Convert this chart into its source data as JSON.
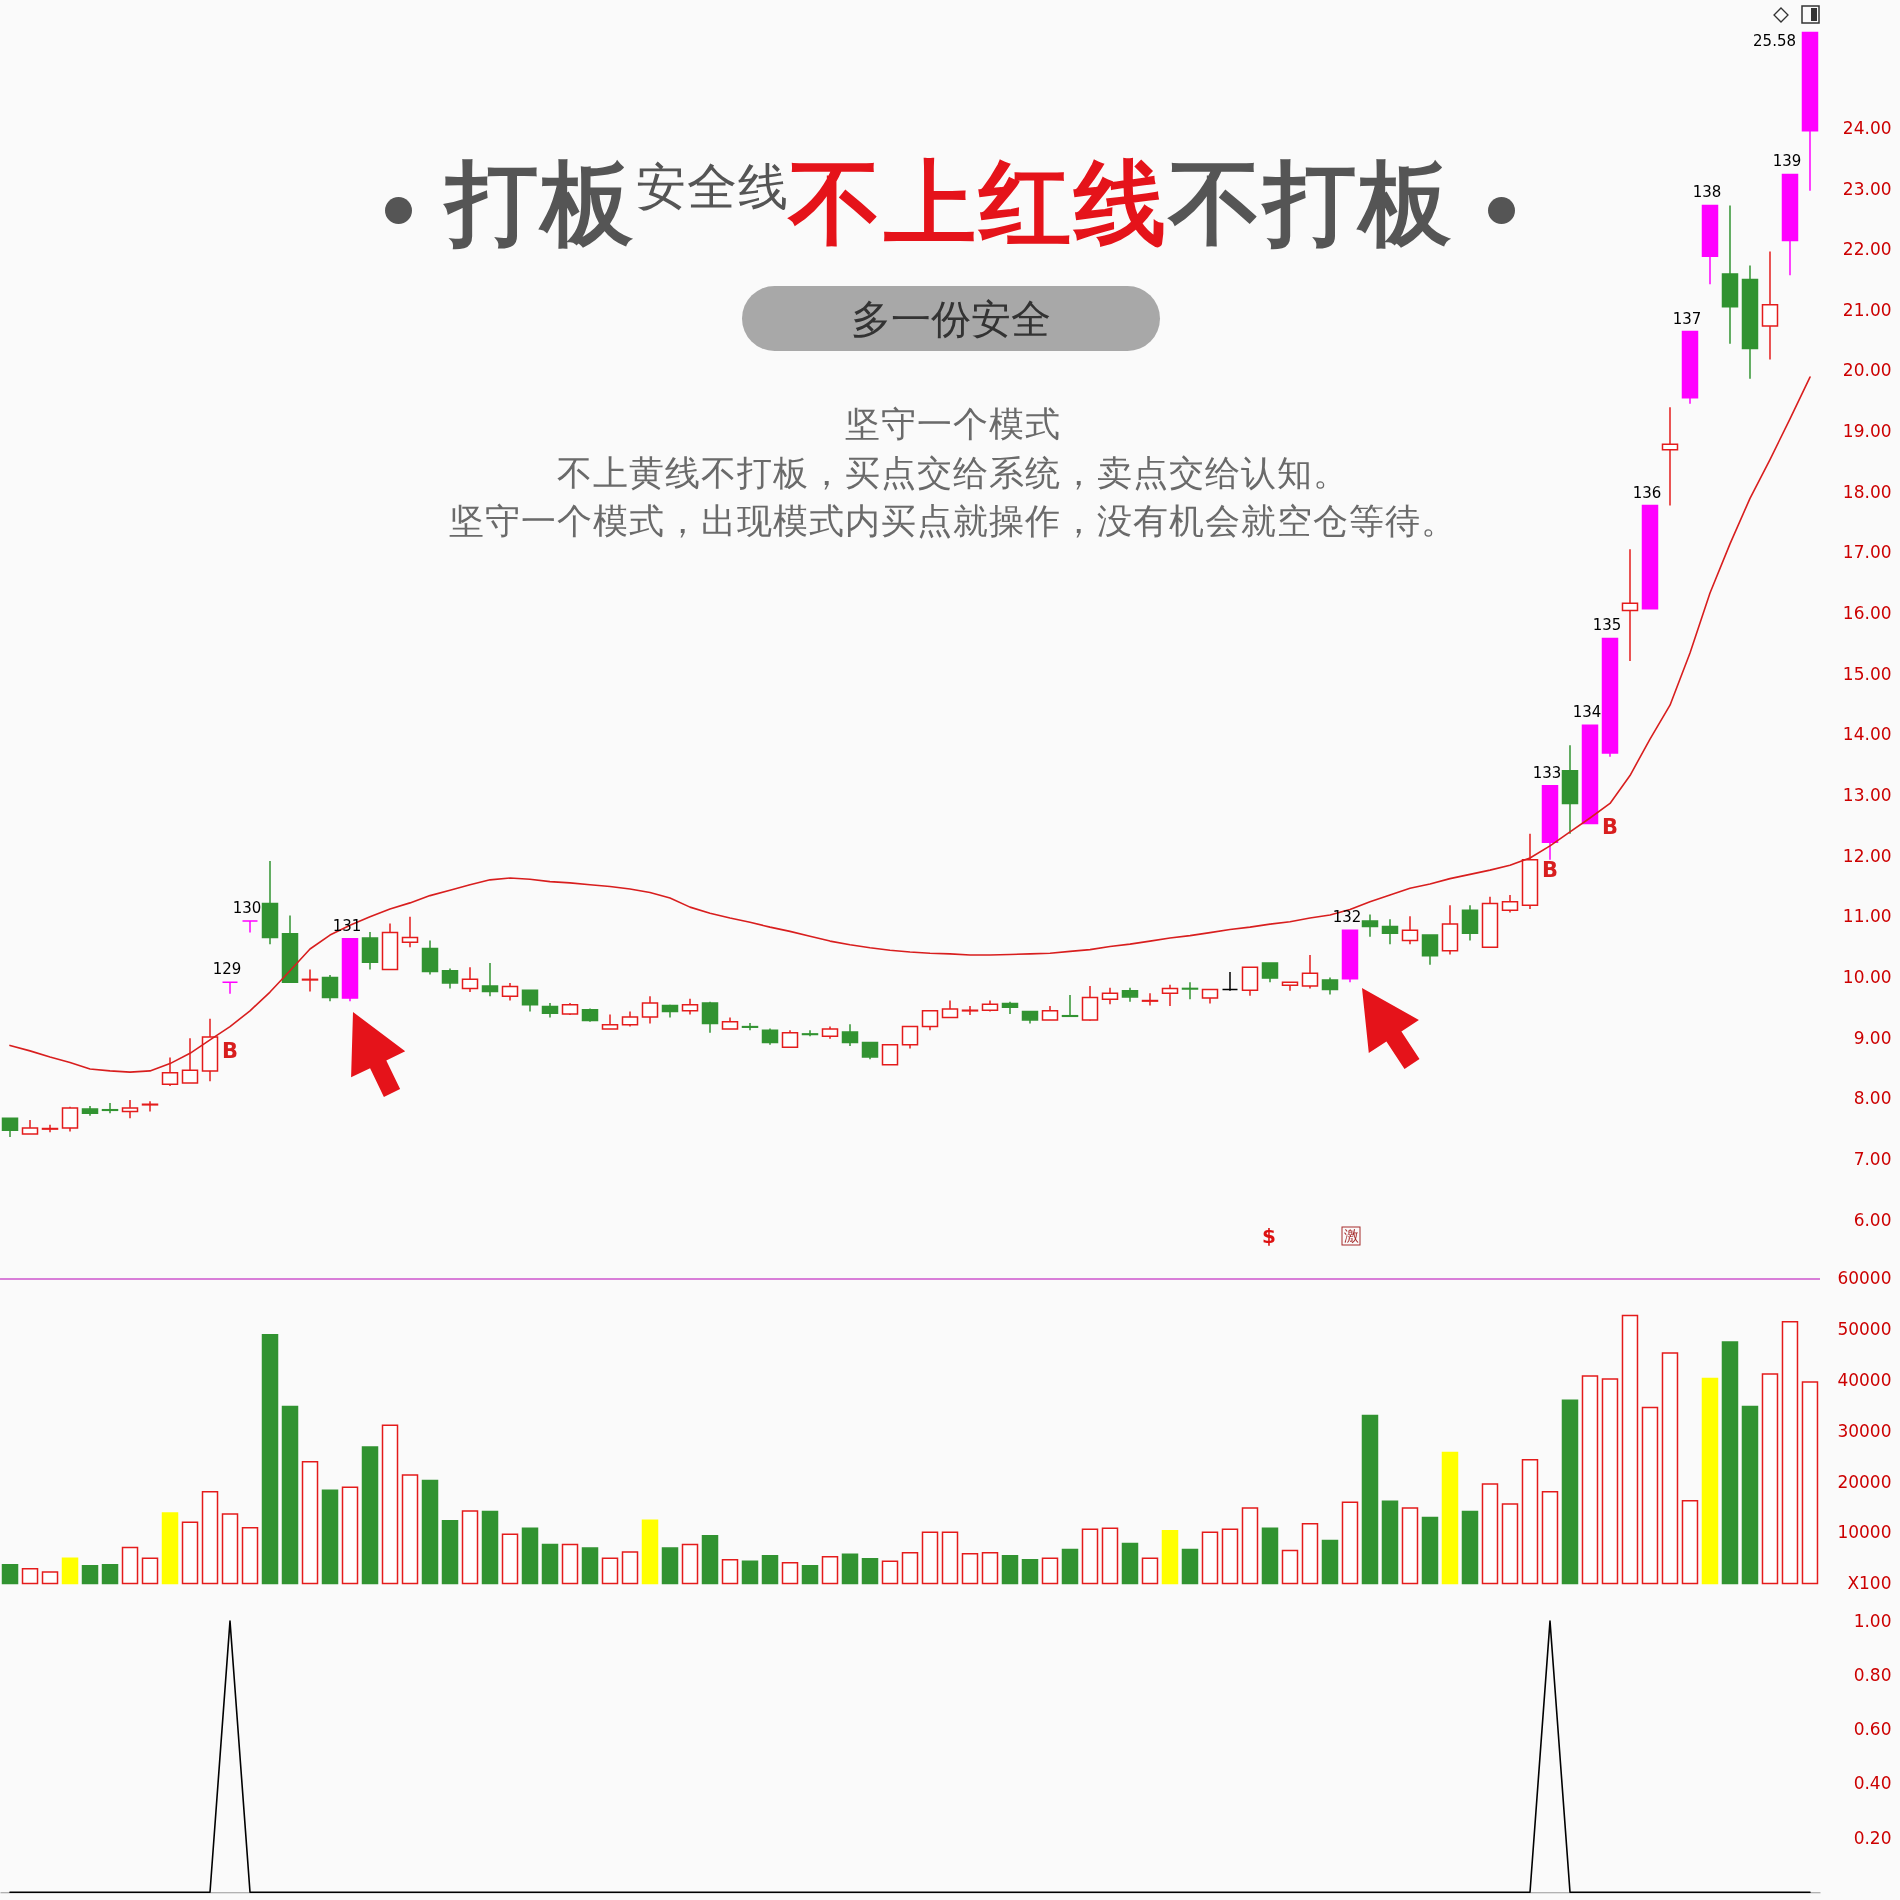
{
  "chart_data": [
    {
      "type": "candlestick",
      "title": "打板安全线不上红线不打板",
      "subtitle": "多一份安全",
      "annotations": [
        "坚守一个模式",
        "不上黄线不打板，买点交给系统，卖点交给认知。",
        "坚守一个模式，出现模式内买点就操作，没有机会就空仓等待。",
        "$",
        "激"
      ],
      "categories": [
        null,
        null,
        null,
        null,
        null,
        null,
        null,
        null,
        null,
        null,
        null,
        null,
        null,
        null,
        null,
        null,
        null,
        null,
        null,
        null,
        null,
        null,
        null,
        null,
        null,
        null,
        null,
        null,
        null,
        null,
        null,
        null,
        null,
        null,
        null,
        null,
        null,
        null,
        null,
        null,
        null,
        null,
        null,
        null,
        null,
        null,
        null,
        null,
        null,
        null,
        null,
        null,
        null,
        null,
        null,
        null,
        null,
        null,
        null,
        null,
        null,
        null,
        null,
        null,
        null,
        null,
        null,
        null,
        null,
        null,
        null,
        null,
        null,
        null,
        null,
        null,
        null,
        null,
        null,
        null,
        null,
        null,
        null,
        null,
        null,
        null,
        null,
        null,
        null,
        null,
        null
      ],
      "ohlc": [
        [
          7.68,
          7.68,
          7.37,
          7.48
        ],
        [
          7.42,
          7.65,
          7.42,
          7.52
        ],
        [
          7.5,
          7.57,
          7.45,
          7.51
        ],
        [
          7.52,
          7.87,
          7.46,
          7.85
        ],
        [
          7.83,
          7.88,
          7.72,
          7.76
        ],
        [
          7.82,
          7.93,
          7.76,
          7.81
        ],
        [
          7.79,
          7.98,
          7.68,
          7.85
        ],
        [
          7.9,
          7.96,
          7.79,
          7.91
        ],
        [
          8.24,
          8.68,
          8.21,
          8.43
        ],
        [
          8.26,
          9.0,
          8.26,
          8.47
        ],
        [
          8.46,
          9.32,
          8.29,
          9.02
        ],
        [
          9.92,
          9.92,
          9.73,
          9.92
        ],
        [
          10.93,
          10.93,
          10.74,
          10.93
        ],
        [
          11.22,
          11.92,
          10.55,
          10.66
        ],
        [
          10.72,
          11.02,
          9.91,
          9.92
        ],
        [
          9.96,
          10.13,
          9.77,
          9.97
        ],
        [
          10.0,
          10.04,
          9.61,
          9.67
        ],
        [
          9.66,
          10.64,
          9.61,
          10.64
        ],
        [
          10.65,
          10.75,
          10.13,
          10.25
        ],
        [
          10.13,
          10.89,
          10.13,
          10.74
        ],
        [
          10.58,
          11.0,
          10.5,
          10.66
        ],
        [
          10.48,
          10.61,
          10.05,
          10.1
        ],
        [
          10.11,
          10.15,
          9.82,
          9.91
        ],
        [
          9.82,
          10.17,
          9.76,
          9.97
        ],
        [
          9.86,
          10.24,
          9.69,
          9.77
        ],
        [
          9.69,
          9.91,
          9.62,
          9.85
        ],
        [
          9.79,
          9.79,
          9.44,
          9.55
        ],
        [
          9.52,
          9.58,
          9.34,
          9.41
        ],
        [
          9.4,
          9.58,
          9.38,
          9.55
        ],
        [
          9.47,
          9.49,
          9.27,
          9.29
        ],
        [
          9.15,
          9.39,
          9.15,
          9.22
        ],
        [
          9.22,
          9.44,
          9.19,
          9.35
        ],
        [
          9.35,
          9.69,
          9.24,
          9.58
        ],
        [
          9.54,
          9.55,
          9.34,
          9.44
        ],
        [
          9.45,
          9.65,
          9.39,
          9.55
        ],
        [
          9.58,
          9.6,
          9.09,
          9.24
        ],
        [
          9.15,
          9.34,
          9.15,
          9.27
        ],
        [
          9.19,
          9.25,
          9.13,
          9.18
        ],
        [
          9.13,
          9.16,
          8.89,
          8.93
        ],
        [
          8.85,
          9.13,
          8.85,
          9.09
        ],
        [
          9.07,
          9.13,
          9.03,
          9.06
        ],
        [
          9.03,
          9.19,
          8.99,
          9.15
        ],
        [
          9.1,
          9.23,
          8.87,
          8.93
        ],
        [
          8.93,
          8.93,
          8.65,
          8.69
        ],
        [
          8.56,
          8.89,
          8.56,
          8.89
        ],
        [
          8.89,
          9.19,
          8.83,
          9.19
        ],
        [
          9.19,
          9.45,
          9.13,
          9.45
        ],
        [
          9.34,
          9.62,
          9.34,
          9.48
        ],
        [
          9.45,
          9.53,
          9.38,
          9.46
        ],
        [
          9.46,
          9.62,
          9.44,
          9.56
        ],
        [
          9.57,
          9.6,
          9.4,
          9.51
        ],
        [
          9.44,
          9.44,
          9.24,
          9.3
        ],
        [
          9.3,
          9.53,
          9.3,
          9.45
        ],
        [
          9.37,
          9.71,
          9.36,
          9.36
        ],
        [
          9.3,
          9.86,
          9.29,
          9.67
        ],
        [
          9.64,
          9.83,
          9.56,
          9.74
        ],
        [
          9.78,
          9.83,
          9.6,
          9.68
        ],
        [
          9.61,
          9.74,
          9.54,
          9.62
        ],
        [
          9.74,
          9.88,
          9.53,
          9.82
        ],
        [
          9.82,
          9.92,
          9.64,
          9.81
        ],
        [
          9.66,
          9.8,
          9.57,
          9.8
        ],
        [
          9.8,
          10.09,
          9.78,
          9.8
        ],
        [
          9.79,
          10.17,
          9.7,
          10.17
        ],
        [
          10.24,
          10.24,
          9.92,
          9.99
        ],
        [
          9.87,
          9.92,
          9.78,
          9.92
        ],
        [
          9.86,
          10.37,
          9.82,
          10.07
        ],
        [
          9.96,
          10.0,
          9.72,
          9.8
        ],
        [
          9.98,
          10.78,
          9.92,
          10.78
        ],
        [
          10.93,
          11.04,
          10.67,
          10.84
        ],
        [
          10.84,
          10.96,
          10.55,
          10.73
        ],
        [
          10.61,
          11.01,
          10.55,
          10.78
        ],
        [
          10.7,
          10.7,
          10.21,
          10.36
        ],
        [
          10.44,
          11.19,
          10.38,
          10.88
        ],
        [
          11.11,
          11.19,
          10.61,
          10.73
        ],
        [
          10.5,
          11.33,
          10.5,
          11.22
        ],
        [
          11.11,
          11.36,
          11.07,
          11.25
        ],
        [
          11.19,
          12.37,
          11.13,
          11.94
        ],
        [
          12.23,
          13.16,
          11.94,
          13.16
        ],
        [
          13.41,
          13.83,
          12.37,
          12.87
        ],
        [
          12.54,
          14.16,
          12.54,
          14.16
        ],
        [
          13.7,
          15.59,
          13.64,
          15.59
        ],
        [
          16.05,
          17.06,
          15.22,
          16.17
        ],
        [
          16.08,
          17.78,
          16.08,
          17.78
        ],
        [
          18.7,
          19.4,
          17.78,
          18.79
        ],
        [
          19.56,
          20.65,
          19.46,
          20.65
        ],
        [
          21.89,
          22.73,
          21.43,
          22.73
        ],
        [
          21.6,
          22.73,
          20.45,
          21.06
        ],
        [
          21.51,
          21.74,
          19.87,
          20.37
        ],
        [
          20.74,
          21.97,
          20.19,
          21.09
        ],
        [
          22.15,
          23.24,
          21.58,
          23.24
        ],
        [
          23.96,
          25.58,
          22.97,
          25.58
        ]
      ],
      "color": "#e41b1b",
      "colors": [
        "#319331",
        "#e41b1b",
        "#e41b1b",
        "#e41b1b",
        "#319331",
        "#319331",
        "#e41b1b",
        "#e41b1b",
        "#e41b1b",
        "#e41b1b",
        "#e41b1b",
        "#ff00ff",
        "#ff00ff",
        "#319331",
        "#319331",
        "#e41b1b",
        "#319331",
        "#ff00ff",
        "#319331",
        "#e41b1b",
        "#e41b1b",
        "#319331",
        "#319331",
        "#e41b1b",
        "#319331",
        "#e41b1b",
        "#319331",
        "#319331",
        "#e41b1b",
        "#319331",
        "#e41b1b",
        "#e41b1b",
        "#e41b1b",
        "#319331",
        "#e41b1b",
        "#319331",
        "#e41b1b",
        "#319331",
        "#319331",
        "#e41b1b",
        "#319331",
        "#e41b1b",
        "#319331",
        "#319331",
        "#e41b1b",
        "#e41b1b",
        "#e41b1b",
        "#e41b1b",
        "#e41b1b",
        "#e41b1b",
        "#319331",
        "#319331",
        "#e41b1b",
        "#319331",
        "#e41b1b",
        "#e41b1b",
        "#319331",
        "#e41b1b",
        "#e41b1b",
        "#319331",
        "#e41b1b",
        "#000000",
        "#e41b1b",
        "#319331",
        "#e41b1b",
        "#e41b1b",
        "#319331",
        "#ff00ff",
        "#319331",
        "#319331",
        "#e41b1b",
        "#319331",
        "#e41b1b",
        "#319331",
        "#e41b1b",
        "#e41b1b",
        "#e41b1b",
        "#ff00ff",
        "#319331",
        "#ff00ff",
        "#ff00ff",
        "#e41b1b",
        "#ff00ff",
        "#e41b1b",
        "#ff00ff",
        "#ff00ff",
        "#319331",
        "#319331",
        "#e41b1b",
        "#ff00ff",
        "#ff00ff"
      ],
      "value_labels": [
        null,
        null,
        null,
        null,
        null,
        null,
        null,
        null,
        null,
        null,
        null,
        "129",
        "130",
        null,
        null,
        null,
        null,
        "131",
        null,
        null,
        null,
        null,
        null,
        null,
        null,
        null,
        null,
        null,
        null,
        null,
        null,
        null,
        null,
        null,
        null,
        null,
        null,
        null,
        null,
        null,
        null,
        null,
        null,
        null,
        null,
        null,
        null,
        null,
        null,
        null,
        null,
        null,
        null,
        null,
        null,
        null,
        null,
        null,
        null,
        null,
        null,
        null,
        null,
        null,
        null,
        null,
        null,
        "132",
        null,
        null,
        null,
        null,
        null,
        null,
        null,
        null,
        null,
        "133",
        null,
        "134",
        "135",
        null,
        "136",
        null,
        "137",
        "138",
        null,
        null,
        null,
        "139",
        "25.58"
      ],
      "series": [
        {
          "type": "line",
          "color": "#d81e1e",
          "values": [
            8.88,
            8.79,
            8.69,
            8.6,
            8.49,
            8.46,
            8.44,
            8.46,
            8.58,
            8.75,
            8.97,
            9.19,
            9.45,
            9.76,
            10.11,
            10.47,
            10.7,
            10.86,
            11.0,
            11.13,
            11.23,
            11.35,
            11.44,
            11.53,
            11.61,
            11.64,
            11.62,
            11.58,
            11.56,
            11.53,
            11.5,
            11.46,
            11.4,
            11.31,
            11.16,
            11.06,
            10.98,
            10.91,
            10.83,
            10.76,
            10.68,
            10.6,
            10.54,
            10.49,
            10.45,
            10.42,
            10.4,
            10.39,
            10.37,
            10.37,
            10.38,
            10.39,
            10.4,
            10.43,
            10.46,
            10.51,
            10.55,
            10.6,
            10.65,
            10.69,
            10.74,
            10.79,
            10.83,
            10.88,
            10.92,
            10.98,
            11.03,
            11.12,
            11.25,
            11.36,
            11.47,
            11.54,
            11.63,
            11.7,
            11.77,
            11.85,
            11.97,
            12.17,
            12.4,
            12.63,
            12.87,
            13.33,
            13.93,
            14.49,
            15.35,
            16.34,
            17.15,
            17.9,
            18.54,
            19.21,
            19.9
          ],
          "value_labels": [
            null,
            null,
            null,
            null,
            null,
            null,
            null,
            null,
            null,
            null,
            null,
            "B",
            null,
            null,
            null,
            null,
            null,
            null,
            null,
            null,
            null,
            null,
            null,
            null,
            null,
            null,
            null,
            null,
            null,
            null,
            null,
            null,
            null,
            null,
            null,
            null,
            null,
            null,
            null,
            null,
            null,
            null,
            null,
            null,
            null,
            null,
            null,
            null,
            null,
            null,
            null,
            null,
            null,
            null,
            null,
            null,
            null,
            null,
            null,
            null,
            null,
            null,
            null,
            null,
            null,
            null,
            null,
            null,
            null,
            null,
            null,
            null,
            null,
            null,
            null,
            null,
            null,
            "B",
            null,
            null,
            "B",
            null,
            null,
            null,
            null,
            null,
            null,
            null,
            null,
            null,
            null
          ]
        }
      ],
      "ylim": [
        6,
        26.1
      ],
      "yticks": [
        {
          "value": 6,
          "label": "6.00"
        },
        {
          "value": 7,
          "label": "7.00"
        },
        {
          "value": 8,
          "label": "8.00"
        },
        {
          "value": 9,
          "label": "9.00"
        },
        {
          "value": 10,
          "label": "10.00"
        },
        {
          "value": 11,
          "label": "11.00"
        },
        {
          "value": 12,
          "label": "12.00"
        },
        {
          "value": 13,
          "label": "13.00"
        },
        {
          "value": 14,
          "label": "14.00"
        },
        {
          "value": 15,
          "label": "15.00"
        },
        {
          "value": 16,
          "label": "16.00"
        },
        {
          "value": 17,
          "label": "17.00"
        },
        {
          "value": 18,
          "label": "18.00"
        },
        {
          "value": 19,
          "label": "19.00"
        },
        {
          "value": 20,
          "label": "20.00"
        },
        {
          "value": 21,
          "label": "21.00"
        },
        {
          "value": 22,
          "label": "22.00"
        },
        {
          "value": 23,
          "label": "23.00"
        },
        {
          "value": 24,
          "label": "24.00"
        }
      ]
    },
    {
      "type": "bar",
      "categories": [
        null,
        null,
        null,
        null,
        null,
        null,
        null,
        null,
        null,
        null,
        null,
        null,
        null,
        null,
        null,
        null,
        null,
        null,
        null,
        null,
        null,
        null,
        null,
        null,
        null,
        null,
        null,
        null,
        null,
        null,
        null,
        null,
        null,
        null,
        null,
        null,
        null,
        null,
        null,
        null,
        null,
        null,
        null,
        null,
        null,
        null,
        null,
        null,
        null,
        null,
        null,
        null,
        null,
        null,
        null,
        null,
        null,
        null,
        null,
        null,
        null,
        null,
        null,
        null,
        null,
        null,
        null,
        null,
        null,
        null,
        null,
        null,
        null,
        null,
        null,
        null,
        null,
        null,
        null,
        null,
        null,
        null,
        null,
        null,
        null,
        null,
        null,
        null,
        null,
        null,
        null
      ],
      "values": [
        3700,
        2900,
        2300,
        5000,
        3500,
        3700,
        7100,
        5000,
        13900,
        12100,
        18100,
        13700,
        11000,
        49000,
        34900,
        24000,
        18400,
        19000,
        26900,
        31200,
        21400,
        20300,
        12400,
        14300,
        14200,
        9700,
        10900,
        7700,
        7700,
        7000,
        5000,
        6200,
        12500,
        7000,
        7700,
        9400,
        4700,
        4400,
        5500,
        4100,
        3500,
        5300,
        5800,
        4900,
        4400,
        6100,
        10100,
        10100,
        5900,
        6100,
        5500,
        4700,
        5000,
        6700,
        10700,
        10900,
        7900,
        5000,
        10400,
        6700,
        10100,
        10700,
        14900,
        10900,
        6500,
        11800,
        8500,
        16000,
        33100,
        16200,
        14900,
        13000,
        25800,
        14200,
        19600,
        15700,
        24400,
        18100,
        36100,
        40900,
        40300,
        52800,
        34700,
        45400,
        16300,
        40400,
        47600,
        34900,
        41300,
        51600,
        39700
      ],
      "color": "#e41b1b",
      "colors": [
        "#319331",
        "#e41b1b",
        "#e41b1b",
        "#ffff00",
        "#319331",
        "#319331",
        "#e41b1b",
        "#e41b1b",
        "#ffff00",
        "#e41b1b",
        "#e41b1b",
        "#e41b1b",
        "#e41b1b",
        "#319331",
        "#319331",
        "#e41b1b",
        "#319331",
        "#e41b1b",
        "#319331",
        "#e41b1b",
        "#e41b1b",
        "#319331",
        "#319331",
        "#e41b1b",
        "#319331",
        "#e41b1b",
        "#319331",
        "#319331",
        "#e41b1b",
        "#319331",
        "#e41b1b",
        "#e41b1b",
        "#ffff00",
        "#319331",
        "#e41b1b",
        "#319331",
        "#e41b1b",
        "#319331",
        "#319331",
        "#e41b1b",
        "#319331",
        "#e41b1b",
        "#319331",
        "#319331",
        "#e41b1b",
        "#e41b1b",
        "#e41b1b",
        "#e41b1b",
        "#e41b1b",
        "#e41b1b",
        "#319331",
        "#319331",
        "#e41b1b",
        "#319331",
        "#e41b1b",
        "#e41b1b",
        "#319331",
        "#e41b1b",
        "#ffff00",
        "#319331",
        "#e41b1b",
        "#e41b1b",
        "#e41b1b",
        "#319331",
        "#e41b1b",
        "#e41b1b",
        "#319331",
        "#e41b1b",
        "#319331",
        "#319331",
        "#e41b1b",
        "#319331",
        "#ffff00",
        "#319331",
        "#e41b1b",
        "#e41b1b",
        "#e41b1b",
        "#e41b1b",
        "#319331",
        "#e41b1b",
        "#e41b1b",
        "#e41b1b",
        "#e41b1b",
        "#e41b1b",
        "#e41b1b",
        "#ffff00",
        "#319331",
        "#319331",
        "#e41b1b",
        "#e41b1b",
        "#e41b1b"
      ],
      "ylim": [
        0,
        60000
      ],
      "yticks": [
        {
          "value": 0,
          "label": "X100"
        },
        10000,
        20000,
        30000,
        40000,
        50000,
        60000
      ],
      "ref_lines": [
        {
          "axis": "y",
          "value": 60000,
          "color": "#cc55cc"
        }
      ]
    },
    {
      "type": "line",
      "categories": [
        null,
        null,
        null,
        null,
        null,
        null,
        null,
        null,
        null,
        null,
        null,
        null,
        null,
        null,
        null,
        null,
        null,
        null,
        null,
        null,
        null,
        null,
        null,
        null,
        null,
        null,
        null,
        null,
        null,
        null,
        null,
        null,
        null,
        null,
        null,
        null,
        null,
        null,
        null,
        null,
        null,
        null,
        null,
        null,
        null,
        null,
        null,
        null,
        null,
        null,
        null,
        null,
        null,
        null,
        null,
        null,
        null,
        null,
        null,
        null,
        null,
        null,
        null,
        null,
        null,
        null,
        null,
        null,
        null,
        null,
        null,
        null,
        null,
        null,
        null,
        null,
        null,
        null,
        null,
        null,
        null,
        null,
        null,
        null,
        null,
        null,
        null,
        null,
        null,
        null,
        null
      ],
      "values": [
        0,
        0,
        0,
        0,
        0,
        0,
        0,
        0,
        0,
        0,
        0,
        1,
        0,
        0,
        0,
        0,
        0,
        0,
        0,
        0,
        0,
        0,
        0,
        0,
        0,
        0,
        0,
        0,
        0,
        0,
        0,
        0,
        0,
        0,
        0,
        0,
        0,
        0,
        0,
        0,
        0,
        0,
        0,
        0,
        0,
        0,
        0,
        0,
        0,
        0,
        0,
        0,
        0,
        0,
        0,
        0,
        0,
        0,
        0,
        0,
        0,
        0,
        0,
        0,
        0,
        0,
        0,
        0,
        0,
        0,
        0,
        0,
        0,
        0,
        0,
        0,
        0,
        1,
        0,
        0,
        0,
        0,
        0,
        0,
        0,
        0,
        0,
        0,
        0,
        0,
        0
      ],
      "color": "#000000",
      "ylim": [
        0,
        1
      ],
      "yticks": [
        {
          "value": 0.2,
          "label": "0.20"
        },
        {
          "value": 0.4,
          "label": "0.40"
        },
        {
          "value": 0.6,
          "label": "0.60"
        },
        {
          "value": 0.8,
          "label": "0.80"
        },
        {
          "value": 1,
          "label": "1.00"
        }
      ]
    }
  ]
}
